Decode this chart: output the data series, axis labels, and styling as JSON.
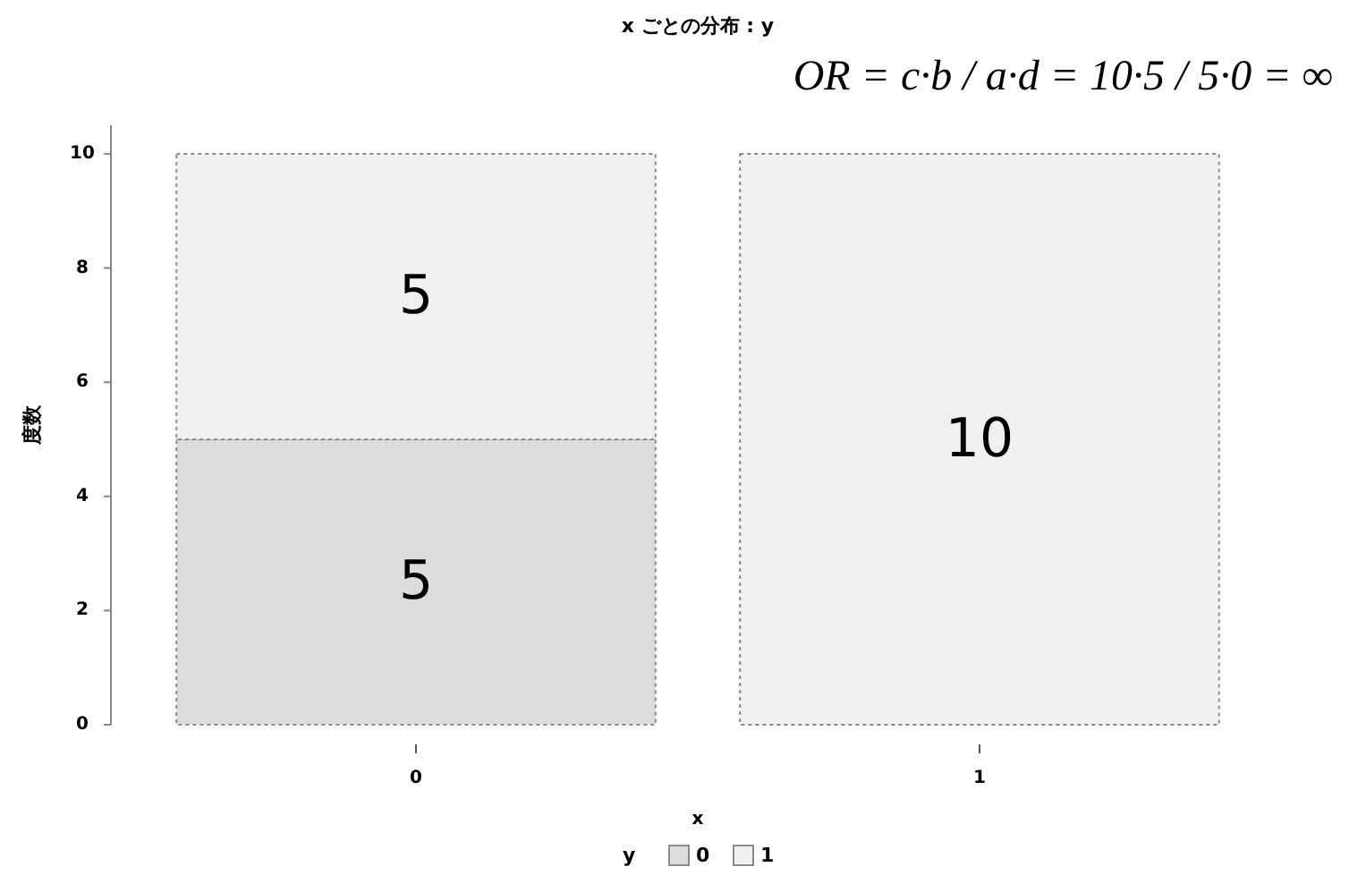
{
  "chart_data": {
    "type": "bar",
    "title": "x ごとの分布 : y",
    "xlabel": "x",
    "ylabel": "度数",
    "legend_title": "y",
    "legend": "bottom",
    "stacked": true,
    "categories": [
      "0",
      "1"
    ],
    "series": [
      {
        "name": "0",
        "color": "#dcdcdc",
        "values": [
          5,
          0
        ],
        "value_labels": [
          "5",
          null
        ]
      },
      {
        "name": "1",
        "color": "#f0f0f0",
        "values": [
          5,
          10
        ],
        "value_labels": [
          "5",
          "10"
        ]
      }
    ],
    "ylim": [
      0,
      10.5
    ],
    "yticks": [
      0,
      2,
      4,
      6,
      8,
      10
    ],
    "annotations": [
      "OR = c·b / a·d = 10·5 / 5·0 = ∞"
    ]
  }
}
